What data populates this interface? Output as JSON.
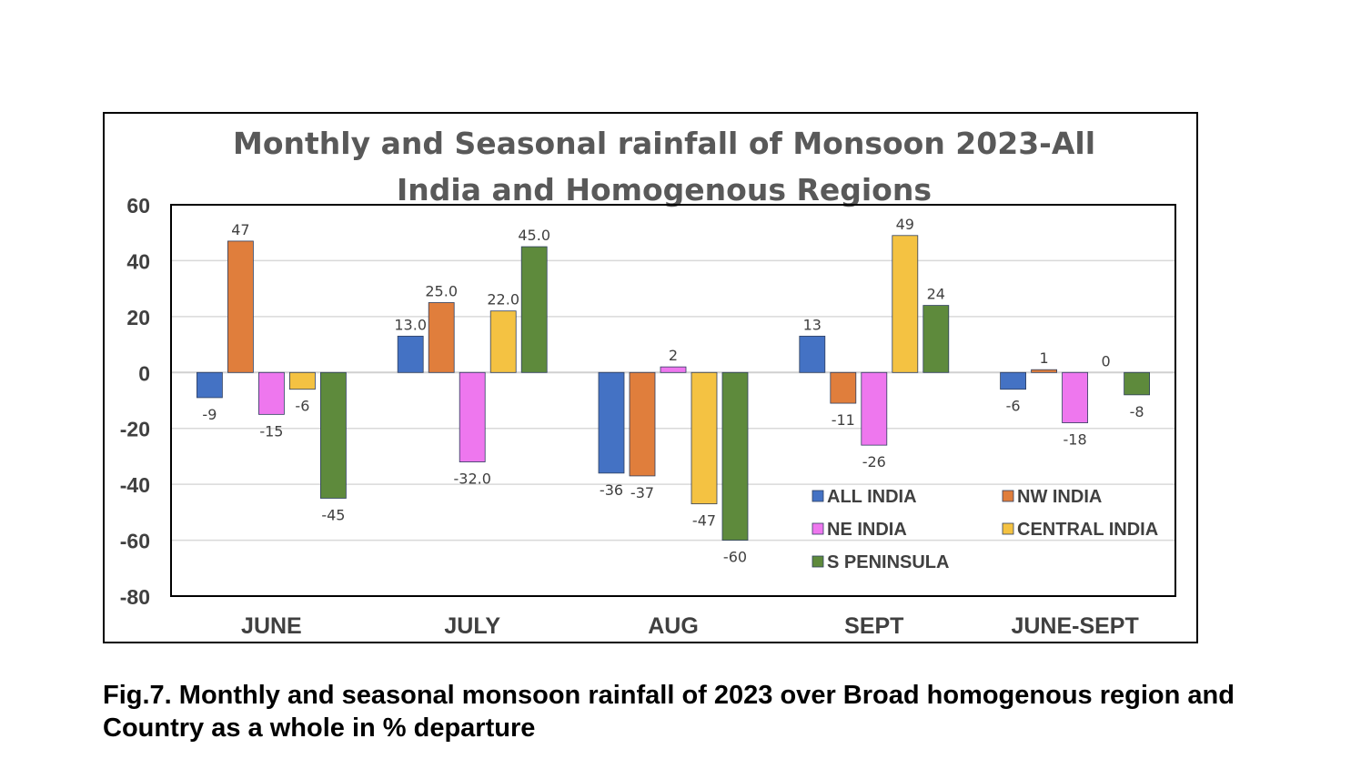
{
  "caption": "Fig.7. Monthly and seasonal monsoon rainfall of 2023 over Broad homogenous region and Country as a whole in % departure",
  "chart_data": {
    "type": "bar",
    "title_lines": [
      "Monthly and Seasonal rainfall of Monsoon 2023-All",
      "India and  Homogenous Regions"
    ],
    "xlabel": "",
    "ylabel": "",
    "ylim": [
      -80,
      60
    ],
    "yticks": [
      60,
      40,
      20,
      0,
      -20,
      -40,
      -60,
      -80
    ],
    "grid": true,
    "legend_position": "bottom-right",
    "categories": [
      "JUNE",
      "JULY",
      "AUG",
      "SEPT",
      "JUNE-SEPT"
    ],
    "series": [
      {
        "name": "ALL INDIA",
        "color": "#4472C4",
        "values": [
          -9,
          13,
          -36,
          13,
          -6
        ],
        "labels": [
          "-9",
          "13.0",
          "-36",
          "13",
          "-6"
        ]
      },
      {
        "name": "NW INDIA",
        "color": "#E07E3C",
        "values": [
          47,
          25,
          -37,
          -11,
          1
        ],
        "labels": [
          "47",
          "25.0",
          "-37",
          "-11",
          "1"
        ]
      },
      {
        "name": "NE INDIA",
        "color": "#EE77EE",
        "values": [
          -15,
          -32,
          2,
          -26,
          -18
        ],
        "labels": [
          "-15",
          "-32.0",
          "2",
          "-26",
          "-18"
        ]
      },
      {
        "name": "CENTRAL INDIA",
        "color": "#F4C242",
        "values": [
          -6,
          22,
          -47,
          49,
          0
        ],
        "labels": [
          "-6",
          "22.0",
          "-47",
          "49",
          "0"
        ]
      },
      {
        "name": "S  PENINSULA",
        "color": "#5E8A3C",
        "values": [
          -45,
          45,
          -60,
          24,
          -8
        ],
        "labels": [
          "-45",
          "45.0",
          "-60",
          "24",
          "-8"
        ]
      }
    ]
  }
}
